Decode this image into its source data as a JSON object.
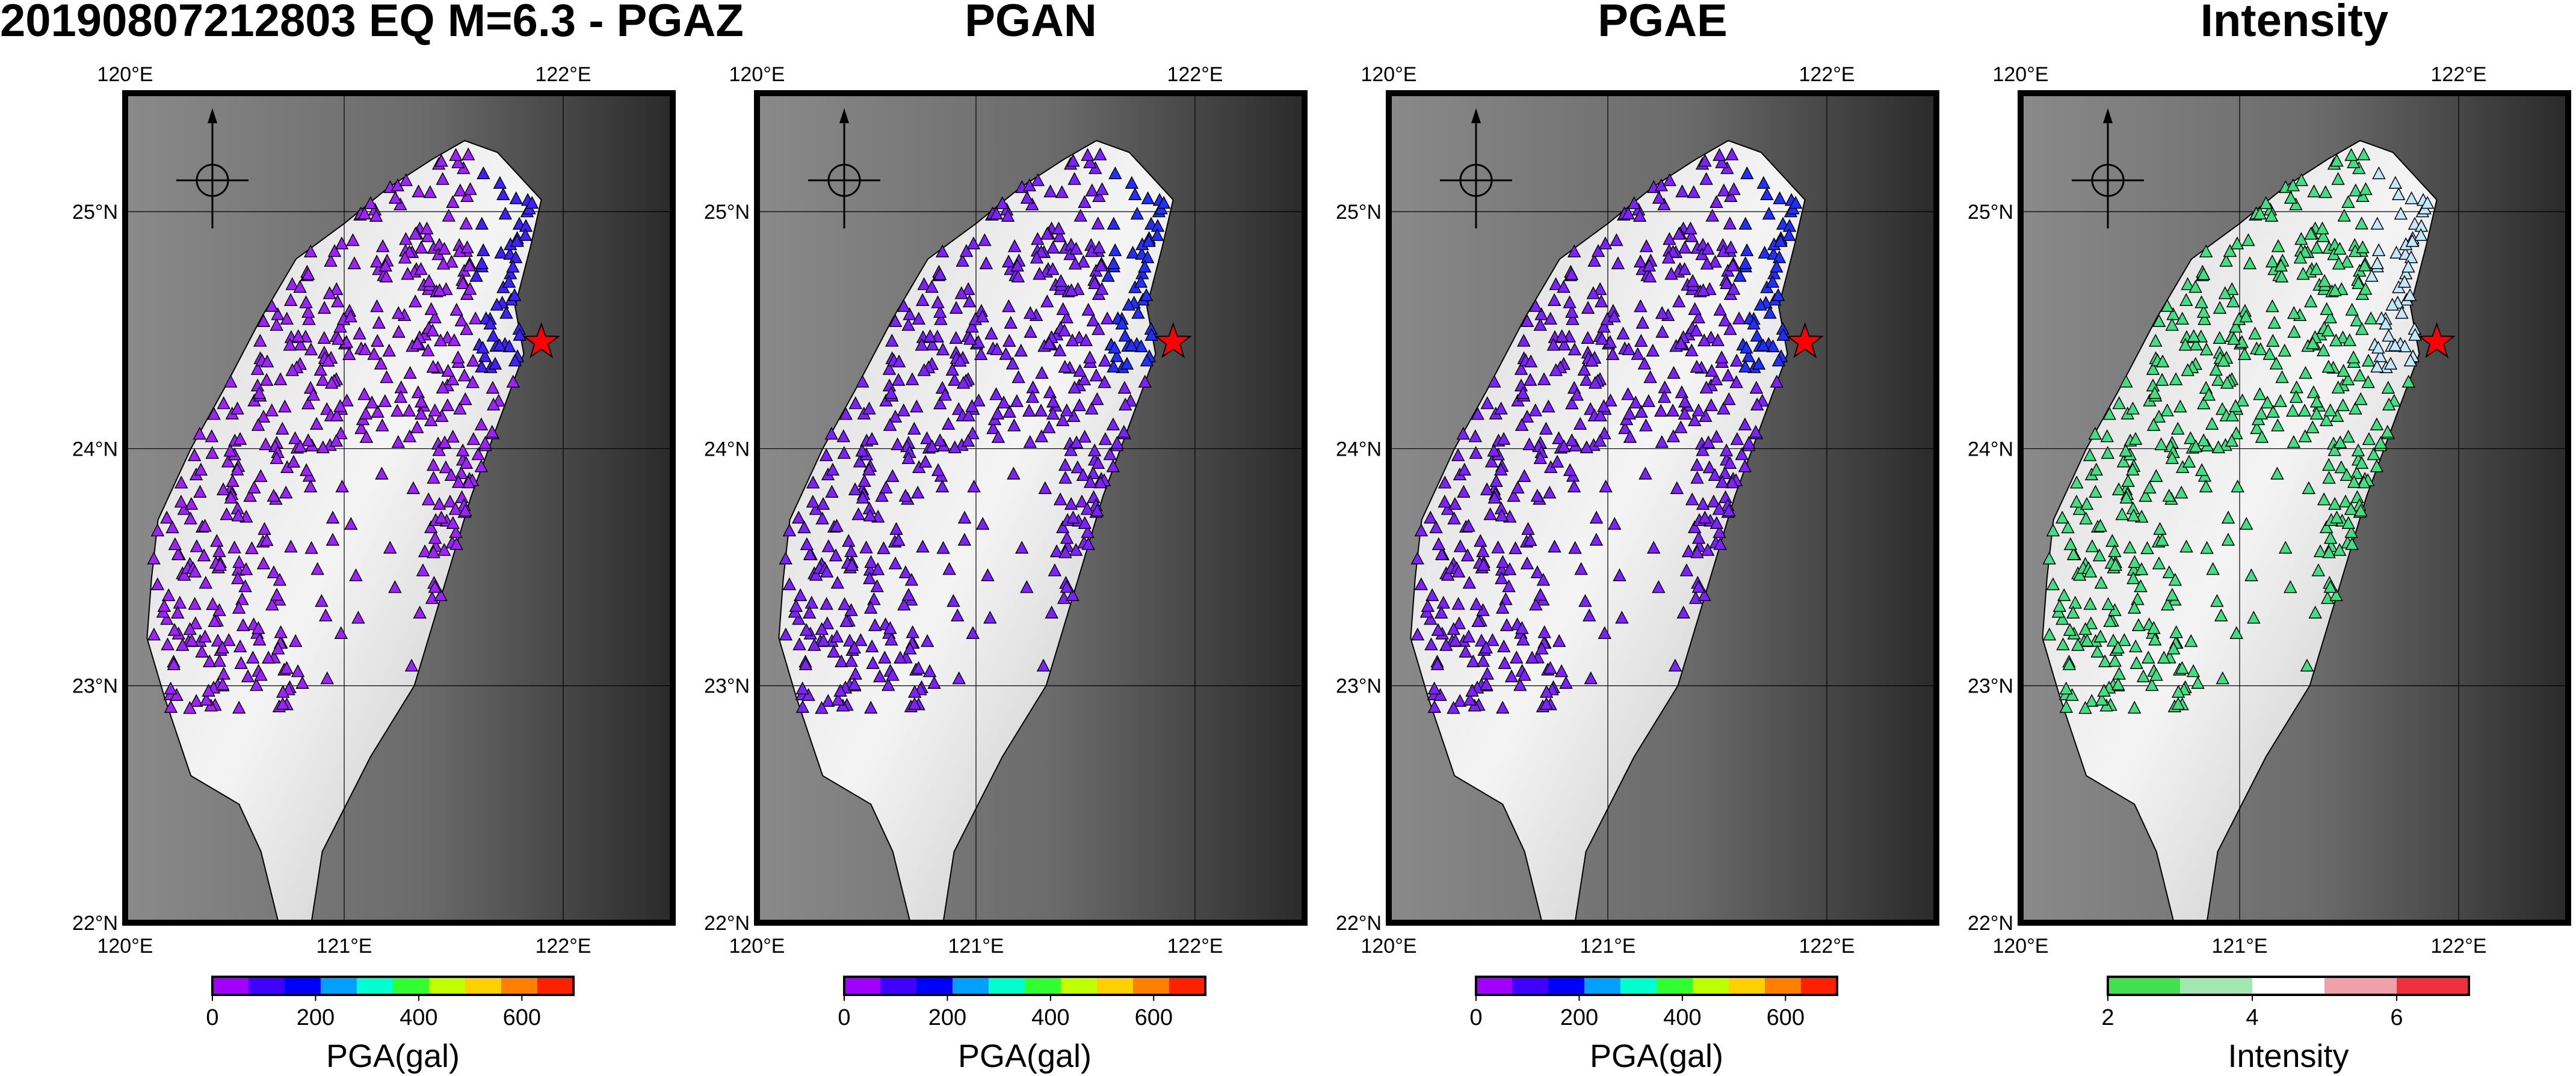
{
  "panels": [
    {
      "title": "20190807212803 EQ M=6.3 - PGAZ",
      "colorbar": {
        "label": "PGA(gal)",
        "ticks": [
          0,
          200,
          400,
          600
        ],
        "range": [
          0,
          700
        ],
        "colors": [
          "#a000ff",
          "#4000ff",
          "#0000ff",
          "#00a0ff",
          "#00ffd0",
          "#30ff30",
          "#c0ff00",
          "#ffd000",
          "#ff8000",
          "#ff2000"
        ]
      },
      "station_color": "#a020ff",
      "station_color_east": "#4020ff"
    },
    {
      "title": "PGAN",
      "colorbar": {
        "label": "PGA(gal)",
        "ticks": [
          0,
          200,
          400,
          600
        ],
        "range": [
          0,
          700
        ],
        "colors": [
          "#a000ff",
          "#4000ff",
          "#0000ff",
          "#00a0ff",
          "#00ffd0",
          "#30ff30",
          "#c0ff00",
          "#ffd000",
          "#ff8000",
          "#ff2000"
        ]
      },
      "station_color": "#8020ff",
      "station_color_east": "#2030ff"
    },
    {
      "title": "PGAE",
      "colorbar": {
        "label": "PGA(gal)",
        "ticks": [
          0,
          200,
          400,
          600
        ],
        "range": [
          0,
          700
        ],
        "colors": [
          "#a000ff",
          "#4000ff",
          "#0000ff",
          "#00a0ff",
          "#00ffd0",
          "#30ff30",
          "#c0ff00",
          "#ffd000",
          "#ff8000",
          "#ff2000"
        ]
      },
      "station_color": "#8020ff",
      "station_color_east": "#2030ff"
    },
    {
      "title": "Intensity",
      "colorbar": {
        "label": "Intensity",
        "ticks": [
          2,
          4,
          6
        ],
        "range": [
          2,
          7
        ],
        "colors": [
          "#40e050",
          "#a0e8b0",
          "#ffffff",
          "#f0a0a8",
          "#f03040"
        ]
      },
      "station_color": "#40e080",
      "station_color_east": "#c0e8ff"
    }
  ],
  "map": {
    "lon_range": [
      120,
      122.5
    ],
    "lat_range": [
      22,
      25.5
    ],
    "lon_ticks_top": [
      "120°E",
      "122°E"
    ],
    "lon_ticks_bottom": [
      "120°E",
      "121°E",
      "122°E"
    ],
    "lat_ticks": [
      "25°N",
      "24°N",
      "23°N",
      "22°N"
    ],
    "epicenter": {
      "lon": 121.9,
      "lat": 24.45,
      "color": "#ff0000"
    },
    "north_arrow": "north-arrow-icon"
  }
}
